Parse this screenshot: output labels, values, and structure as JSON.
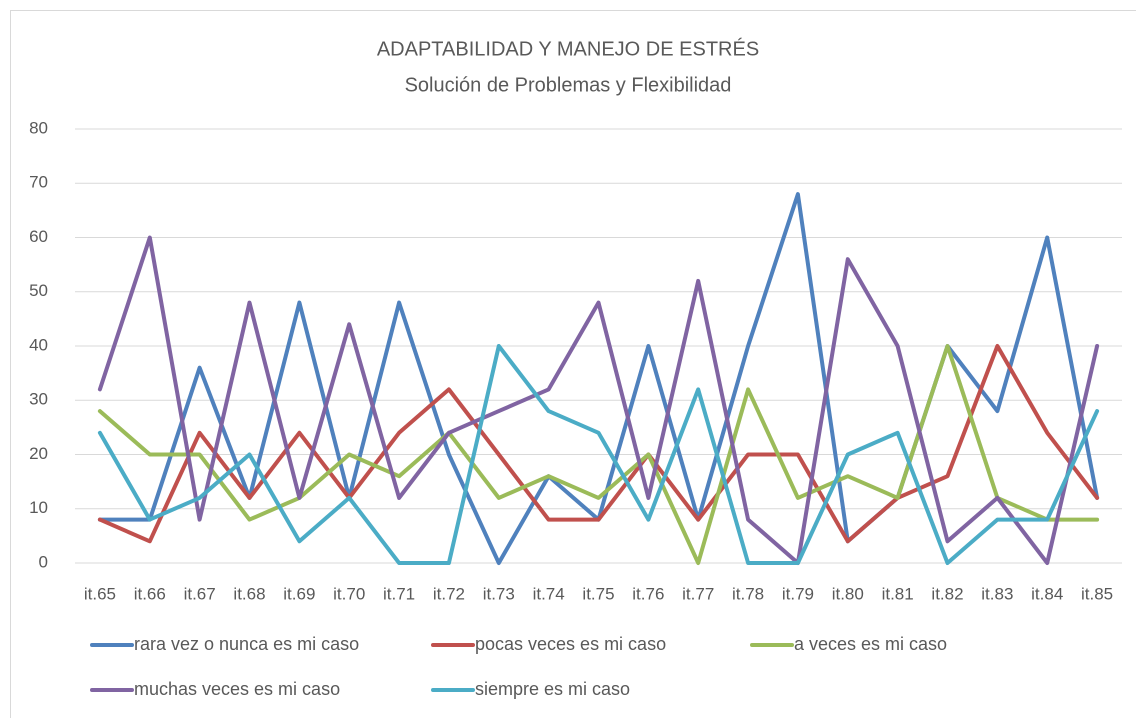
{
  "chart_data": {
    "type": "line",
    "title": "ADAPTABILIDAD Y MANEJO DE ESTRÉS",
    "subtitle": "Solución de Problemas y Flexibilidad",
    "categories": [
      "it.65",
      "it.66",
      "it.67",
      "it.68",
      "it.69",
      "it.70",
      "it.71",
      "it.72",
      "it.73",
      "it.74",
      "it.75",
      "it.76",
      "it.77",
      "it.78",
      "it.79",
      "it.80",
      "it.81",
      "it.82",
      "it.83",
      "it.84",
      "it.85"
    ],
    "series": [
      {
        "name": "rara vez o nunca es mi caso",
        "color": "#4f81bd",
        "values": [
          8,
          8,
          36,
          12,
          48,
          12,
          48,
          20,
          0,
          16,
          8,
          40,
          8,
          40,
          68,
          4,
          12,
          40,
          28,
          60,
          12
        ]
      },
      {
        "name": "pocas veces es mi caso",
        "color": "#c0504d",
        "values": [
          8,
          4,
          24,
          12,
          24,
          12,
          24,
          32,
          20,
          8,
          8,
          20,
          8,
          20,
          20,
          4,
          12,
          16,
          40,
          24,
          12
        ]
      },
      {
        "name": "a veces es mi caso",
        "color": "#9bbb59",
        "values": [
          28,
          20,
          20,
          8,
          12,
          20,
          16,
          24,
          12,
          16,
          12,
          20,
          0,
          32,
          12,
          16,
          12,
          40,
          12,
          8,
          8
        ]
      },
      {
        "name": "muchas veces es mi caso",
        "color": "#8064a2",
        "values": [
          32,
          60,
          8,
          48,
          12,
          44,
          12,
          24,
          28,
          32,
          48,
          12,
          52,
          8,
          0,
          56,
          40,
          4,
          12,
          0,
          40
        ]
      },
      {
        "name": "siempre es mi caso",
        "color": "#4bacc6",
        "values": [
          24,
          8,
          12,
          20,
          4,
          12,
          0,
          0,
          40,
          28,
          24,
          8,
          32,
          0,
          0,
          20,
          24,
          0,
          8,
          8,
          28
        ]
      }
    ],
    "ylim": [
      0,
      80
    ],
    "yticks": [
      0,
      10,
      20,
      30,
      40,
      50,
      60,
      70,
      80
    ],
    "grid": true,
    "legend": "bottom"
  }
}
